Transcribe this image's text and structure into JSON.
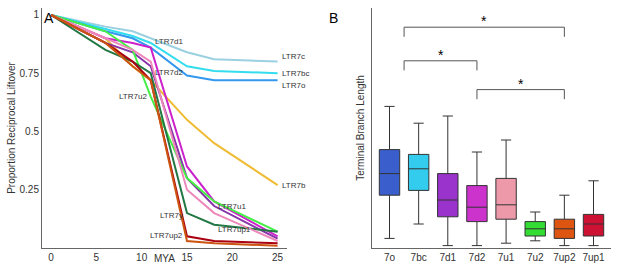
{
  "chart_data": [
    {
      "type": "line",
      "panel": "A",
      "y_label": "Proportion Reciprocal Liftover",
      "x": [
        0,
        6,
        9,
        11,
        15,
        18,
        25
      ],
      "xlim": [
        -1,
        26
      ],
      "xticks": [
        0,
        5,
        10,
        15,
        20,
        25
      ],
      "ylim": [
        0,
        1.03
      ],
      "yticks": [
        0.25,
        0.5,
        0.75,
        1
      ],
      "annotations": [
        {
          "text": "MYA",
          "x": 12.5
        }
      ],
      "series": [
        {
          "name": "LTR7c",
          "color": "#9ad0e0",
          "values": [
            1,
            0.95,
            0.93,
            0.9,
            0.84,
            0.81,
            0.8
          ]
        },
        {
          "name": "LTR7bc",
          "color": "#33ddee",
          "values": [
            1,
            0.94,
            0.91,
            0.88,
            0.78,
            0.76,
            0.75
          ]
        },
        {
          "name": "LTR7o",
          "color": "#3399ee",
          "values": [
            1,
            0.93,
            0.9,
            0.86,
            0.74,
            0.72,
            0.72
          ]
        },
        {
          "name": "LTR7b",
          "color": "#eebb33",
          "values": [
            1,
            0.9,
            0.78,
            0.72,
            0.55,
            0.45,
            0.27
          ]
        },
        {
          "name": "LTR7d1",
          "color": "#cc22cc",
          "values": [
            1,
            0.9,
            0.88,
            0.86,
            0.35,
            0.2,
            0.05
          ]
        },
        {
          "name": "LTR7d2",
          "color": "#8833aa",
          "values": [
            1,
            0.88,
            0.84,
            0.78,
            0.3,
            0.18,
            0.04
          ]
        },
        {
          "name": "LTR7u2",
          "color": "#44ee44",
          "values": [
            1,
            0.93,
            0.85,
            0.65,
            0.3,
            0.2,
            0.07
          ]
        },
        {
          "name": "LTR7y",
          "color": "#227744",
          "values": [
            1,
            0.85,
            0.8,
            0.75,
            0.15,
            0.1,
            0.07
          ]
        },
        {
          "name": "LTR7u1",
          "color": "#ee88bb",
          "values": [
            1,
            0.9,
            0.85,
            0.8,
            0.25,
            0.15,
            0.03
          ]
        },
        {
          "name": "LTR7up1",
          "color": "#aa0011",
          "values": [
            1,
            0.88,
            0.8,
            0.72,
            0.05,
            0.03,
            0.02
          ]
        },
        {
          "name": "LTR7up2",
          "color": "#cc5511",
          "values": [
            1,
            0.88,
            0.78,
            0.72,
            0.03,
            0.02,
            0.01
          ]
        }
      ]
    },
    {
      "type": "box",
      "panel": "B",
      "y_label": "Terminal Branch Length",
      "tick_labels": "x",
      "ylim": [
        0,
        1
      ],
      "yticks": [],
      "categories": [
        "7o",
        "7bc",
        "7d1",
        "7d2",
        "7u1",
        "7u2",
        "7up2",
        "7up1"
      ],
      "colors": [
        "#3a5fcd",
        "#33ccee",
        "#9933cc",
        "#cc33cc",
        "#ee99aa",
        "#33dd33",
        "#dd5511",
        "#cc1133"
      ],
      "lower": [
        0.04,
        0.1,
        0.01,
        0.01,
        0.02,
        0.03,
        0.01,
        0.01
      ],
      "q1": [
        0.22,
        0.24,
        0.13,
        0.11,
        0.12,
        0.05,
        0.04,
        0.05
      ],
      "median": [
        0.31,
        0.33,
        0.2,
        0.17,
        0.18,
        0.08,
        0.08,
        0.1
      ],
      "q3": [
        0.41,
        0.39,
        0.31,
        0.26,
        0.29,
        0.11,
        0.12,
        0.14
      ],
      "upper": [
        0.59,
        0.52,
        0.55,
        0.4,
        0.45,
        0.15,
        0.22,
        0.28
      ],
      "comparisons": [
        {
          "group1": [
            "7o",
            "7bc"
          ],
          "group2": [
            "7d1",
            "7d2",
            "7u1"
          ],
          "label": "*"
        },
        {
          "group1": [
            "7o",
            "7bc"
          ],
          "group2": [
            "7u2",
            "7up2",
            "7up1"
          ],
          "label": "*"
        },
        {
          "group1": [
            "7d1",
            "7d2",
            "7u1"
          ],
          "group2": [
            "7u2",
            "7up2",
            "7up1"
          ],
          "label": "*"
        }
      ]
    }
  ]
}
